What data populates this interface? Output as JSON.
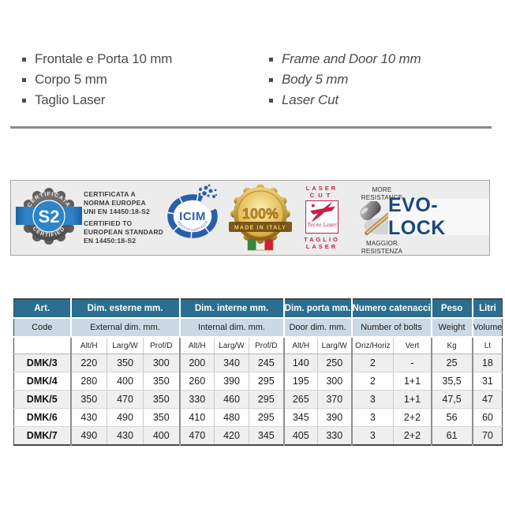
{
  "features": {
    "italian": [
      "Frontale e Porta 10 mm",
      "Corpo 5 mm",
      "Taglio Laser"
    ],
    "english": [
      "Frame and Door 10 mm",
      "Body 5 mm",
      "Laser Cut"
    ]
  },
  "certifications": {
    "s2_badge": {
      "arc_top": "CERTIFICATA",
      "arc_bottom": "CERTIFIED",
      "label": "S2"
    },
    "cert_text": {
      "it": [
        "CERTIFICATA A",
        "NORMA EUROPEA",
        "UNI EN 14450:18-S2"
      ],
      "en": [
        "CERTIFIED TO",
        "EUROPEAN STANDARD",
        "EN 14450:18-S2"
      ]
    },
    "icim": {
      "label": "ICIM",
      "arc_bottom": "PRODOTTO CERTIFICATO"
    },
    "made_in_italy": {
      "percent": "100%",
      "label": "MADE IN ITALY"
    },
    "laser": {
      "line1": "LASER",
      "line2": "CUT",
      "brand": "Tecno Laser",
      "line3": "TAGLIO",
      "line4": "LASER"
    },
    "resistance": {
      "en": [
        "MORE",
        "RESISTANCE"
      ],
      "it": [
        "MAGGIOR",
        "RESISTENZA"
      ]
    },
    "evo_lock": "EVO-LOCK"
  },
  "table": {
    "art": {
      "it": "Art.",
      "en": "Code"
    },
    "groups": [
      {
        "it": "Dim. esterne mm.",
        "en": "External dim. mm.",
        "cols": [
          "Alt/H",
          "Larg/W",
          "Prof/D"
        ]
      },
      {
        "it": "Dim. interne mm.",
        "en": "Internal dim. mm.",
        "cols": [
          "Alt/H",
          "Larg/W",
          "Prof/D"
        ]
      },
      {
        "it": "Dim. porta mm.",
        "en": "Door dim. mm.",
        "cols": [
          "Alt/H",
          "Larg/W"
        ]
      },
      {
        "it": "Numero catenacci",
        "en": "Number of bolts",
        "cols": [
          "Oriz/Horiz",
          "Vert"
        ]
      },
      {
        "it": "Peso",
        "en": "Weight",
        "cols": [
          "Kg"
        ]
      },
      {
        "it": "Litri",
        "en": "Volume",
        "cols": [
          "Lt"
        ]
      }
    ],
    "rows": [
      {
        "code": "DMK/3",
        "values": [
          "220",
          "350",
          "300",
          "200",
          "340",
          "245",
          "140",
          "250",
          "2",
          "-",
          "25",
          "18"
        ]
      },
      {
        "code": "DMK/4",
        "values": [
          "280",
          "400",
          "350",
          "260",
          "390",
          "295",
          "195",
          "300",
          "2",
          "1+1",
          "35,5",
          "31"
        ]
      },
      {
        "code": "DMK/5",
        "values": [
          "350",
          "470",
          "350",
          "330",
          "460",
          "295",
          "265",
          "370",
          "3",
          "1+1",
          "47,5",
          "47"
        ]
      },
      {
        "code": "DMK/6",
        "values": [
          "430",
          "490",
          "350",
          "410",
          "480",
          "295",
          "345",
          "390",
          "3",
          "2+2",
          "56",
          "60"
        ]
      },
      {
        "code": "DMK/7",
        "values": [
          "490",
          "430",
          "400",
          "470",
          "420",
          "345",
          "405",
          "330",
          "3",
          "2+2",
          "61",
          "70"
        ]
      }
    ]
  },
  "colors": {
    "header_teal": "#2b6e90",
    "header_light_blue": "#cad9e3",
    "accent_red": "#c22349",
    "evo_blue": "#17497f",
    "s2_blue": "#2f84c8",
    "icim_blue": "#2b5ea9",
    "gold": "#caa23c"
  }
}
